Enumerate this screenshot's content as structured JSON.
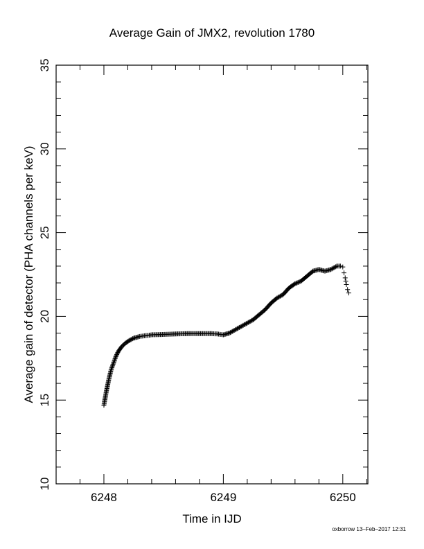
{
  "chart_data": {
    "type": "scatter",
    "title": "Average Gain of JMX2, revolution 1780",
    "xlabel": "Time in IJD",
    "ylabel": "Average gain of detector (PHA channels per keV)",
    "xlim": [
      6247.6,
      6250.21
    ],
    "ylim": [
      10,
      35
    ],
    "xticks": [
      6248,
      6249,
      6250
    ],
    "xtick_labels": [
      "6248",
      "6249",
      "6250"
    ],
    "yticks": [
      10,
      15,
      20,
      25,
      30,
      35
    ],
    "ytick_labels": [
      "10",
      "15",
      "20",
      "25",
      "30",
      "35"
    ],
    "x_minor_step": 0.2,
    "y_minor_step": 1,
    "marker": "+",
    "color": "#000000",
    "grid": false,
    "legend": "none",
    "series": [
      {
        "x": [
          6248.0,
          6248.02,
          6248.04,
          6248.06,
          6248.08,
          6248.1,
          6248.12,
          6248.15,
          6248.18,
          6248.21,
          6248.25,
          6248.3,
          6248.35,
          6248.4,
          6248.5,
          6248.6,
          6248.7,
          6248.8,
          6248.9,
          6248.95,
          6249.0,
          6249.05,
          6249.1,
          6249.15,
          6249.2,
          6249.25,
          6249.3,
          6249.35,
          6249.4,
          6249.45,
          6249.5,
          6249.55,
          6249.6,
          6249.65,
          6249.7,
          6249.75,
          6249.8,
          6249.85,
          6249.9,
          6249.95,
          6249.98,
          6250.0,
          6250.01,
          6250.02,
          6250.03,
          6250.04,
          6250.05
        ],
        "y": [
          14.7,
          15.5,
          16.2,
          16.8,
          17.2,
          17.6,
          17.9,
          18.2,
          18.4,
          18.55,
          18.7,
          18.8,
          18.85,
          18.9,
          18.92,
          18.95,
          18.97,
          18.97,
          18.97,
          18.95,
          18.9,
          19.0,
          19.2,
          19.4,
          19.6,
          19.8,
          20.1,
          20.4,
          20.8,
          21.1,
          21.3,
          21.7,
          21.95,
          22.1,
          22.4,
          22.7,
          22.8,
          22.7,
          22.8,
          23.0,
          23.0,
          22.95,
          22.6,
          22.3,
          21.9,
          21.6,
          21.4
        ]
      }
    ]
  },
  "footer": {
    "text": "oxborrow 13–Feb–2017 12:31"
  }
}
